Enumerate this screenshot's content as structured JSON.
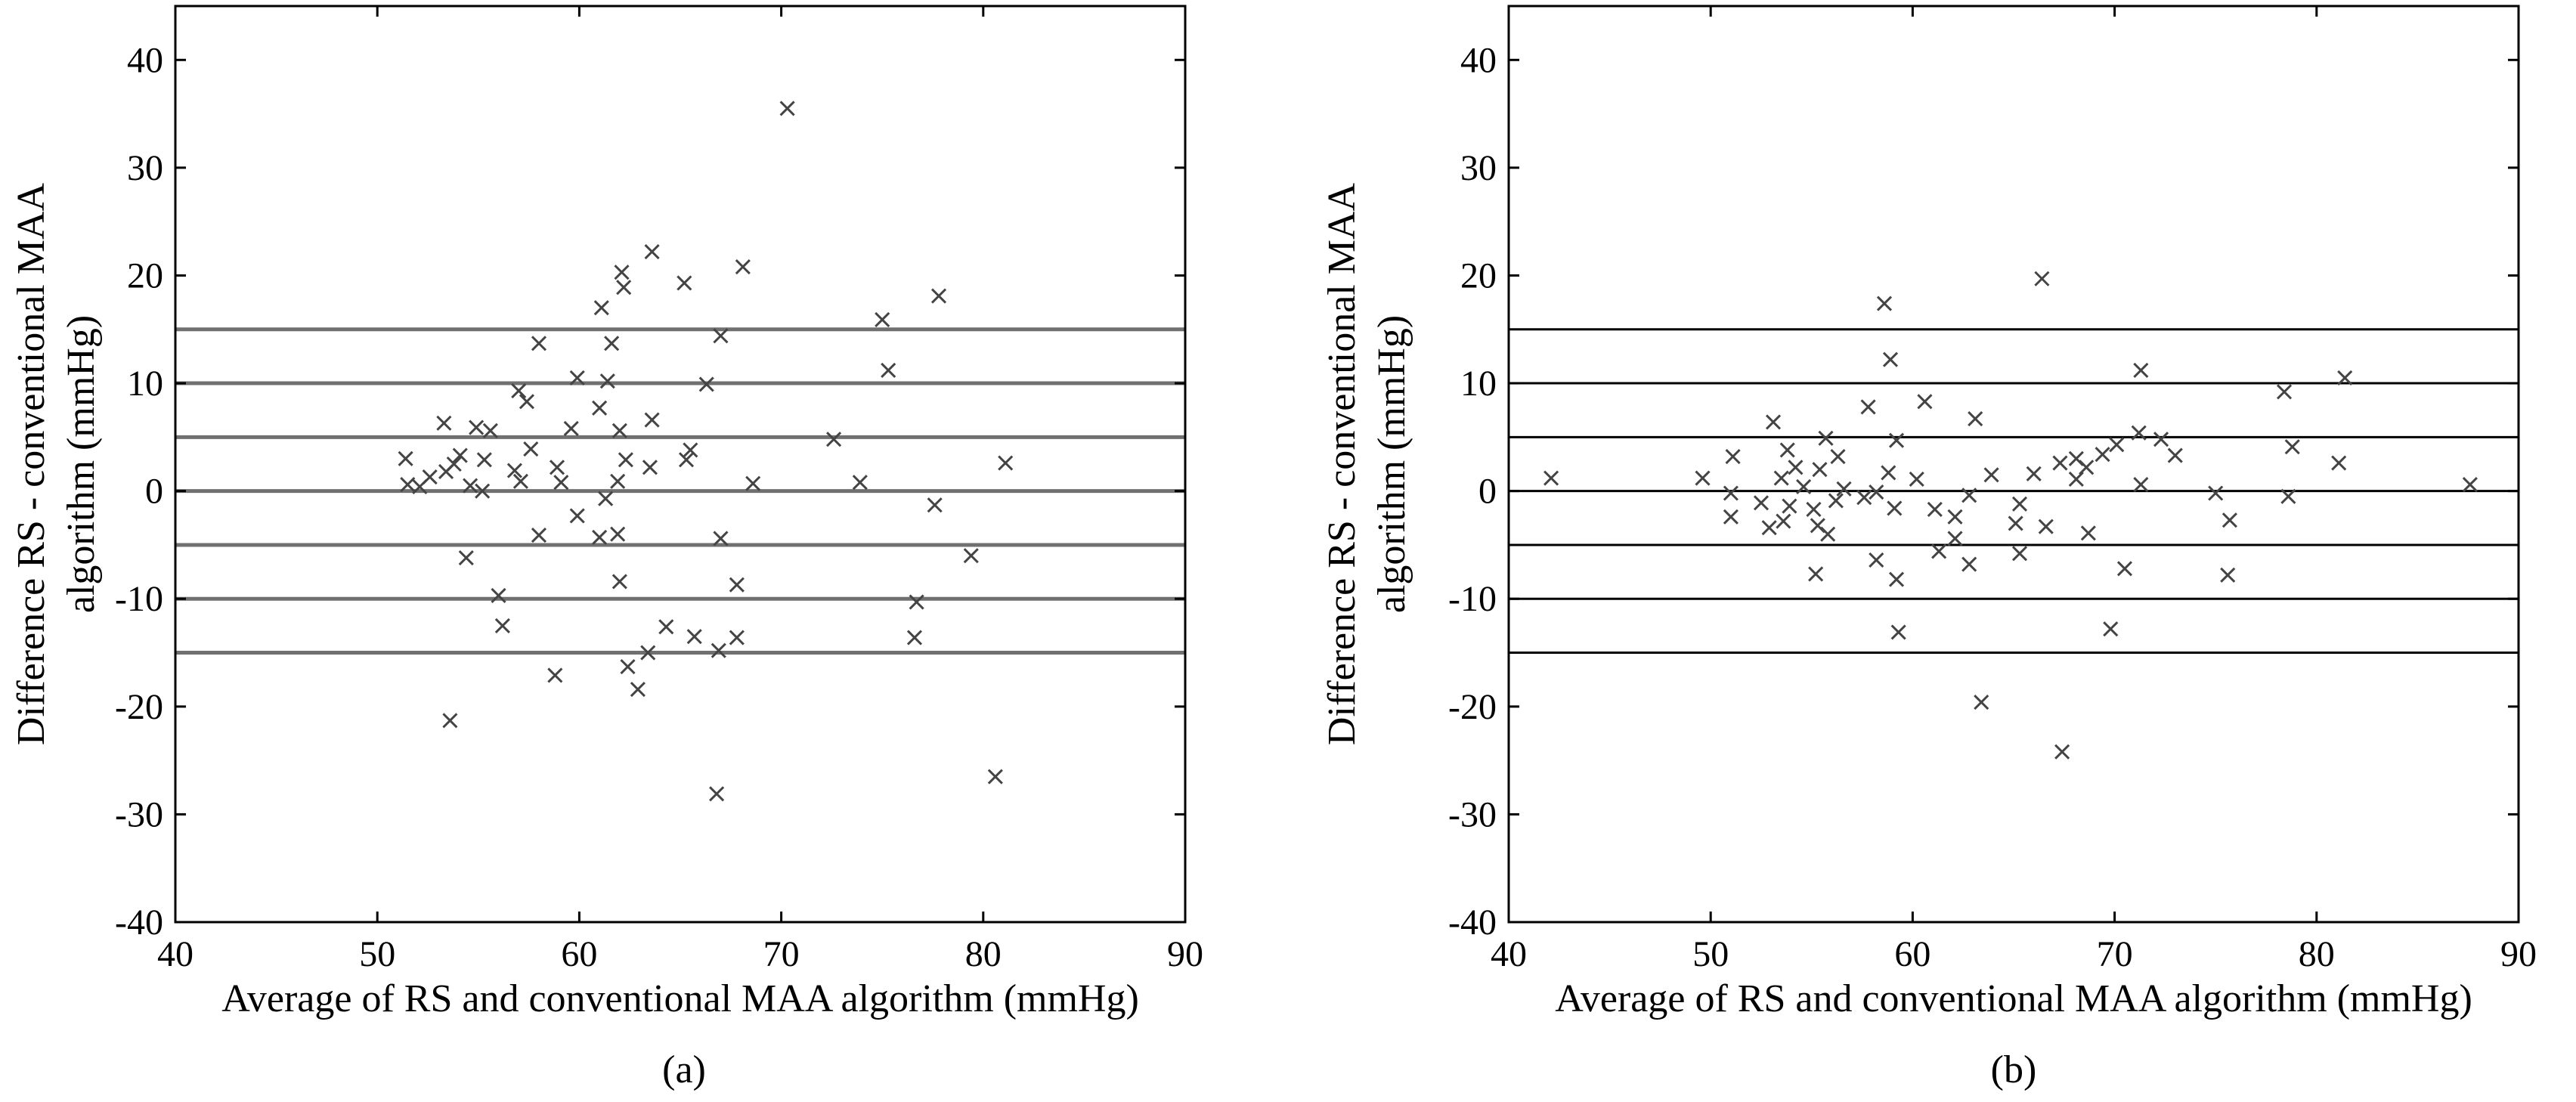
{
  "chart_data": [
    {
      "type": "scatter",
      "panel_label": "(a)",
      "title": "",
      "xlabel": "Average of RS and conventional MAA algorithm (mmHg)",
      "ylabel": "Difference RS - conventional MAA algorithm (mmHg)",
      "ylabel_lines": [
        "Difference RS - conventional MAA",
        "algorithm (mmHg)"
      ],
      "xlim": [
        40,
        90
      ],
      "ylim": [
        -40,
        45
      ],
      "xticks": [
        40,
        50,
        60,
        70,
        80,
        90
      ],
      "yticks": [
        -40,
        -30,
        -20,
        -10,
        0,
        10,
        20,
        30,
        40
      ],
      "grid": false,
      "marker": "x",
      "reference_lines": [
        -15,
        -10,
        -5,
        0,
        5,
        10,
        15
      ],
      "points": [
        [
          70.3,
          35.5
        ],
        [
          63.6,
          22.2
        ],
        [
          62.1,
          20.3
        ],
        [
          68.1,
          20.8
        ],
        [
          65.2,
          19.3
        ],
        [
          62.2,
          18.9
        ],
        [
          77.8,
          18.1
        ],
        [
          61.1,
          17.0
        ],
        [
          67.0,
          14.4
        ],
        [
          75.0,
          15.9
        ],
        [
          58.0,
          13.7
        ],
        [
          61.6,
          13.7
        ],
        [
          75.3,
          11.2
        ],
        [
          59.9,
          10.5
        ],
        [
          61.4,
          10.2
        ],
        [
          66.3,
          9.9
        ],
        [
          57.0,
          9.3
        ],
        [
          57.4,
          8.3
        ],
        [
          61.0,
          7.7
        ],
        [
          63.6,
          6.6
        ],
        [
          53.3,
          6.3
        ],
        [
          59.6,
          5.8
        ],
        [
          54.9,
          5.9
        ],
        [
          55.6,
          5.6
        ],
        [
          62.0,
          5.6
        ],
        [
          72.6,
          4.8
        ],
        [
          57.6,
          3.9
        ],
        [
          65.5,
          3.8
        ],
        [
          54.1,
          3.3
        ],
        [
          65.3,
          2.9
        ],
        [
          51.4,
          3.0
        ],
        [
          55.3,
          2.9
        ],
        [
          53.8,
          2.5
        ],
        [
          62.3,
          2.9
        ],
        [
          81.1,
          2.6
        ],
        [
          58.9,
          2.2
        ],
        [
          63.5,
          2.2
        ],
        [
          53.4,
          1.8
        ],
        [
          56.8,
          1.9
        ],
        [
          52.6,
          1.3
        ],
        [
          57.1,
          0.9
        ],
        [
          59.1,
          0.8
        ],
        [
          61.9,
          0.9
        ],
        [
          51.5,
          0.6
        ],
        [
          52.1,
          0.4
        ],
        [
          54.6,
          0.5
        ],
        [
          55.2,
          0.0
        ],
        [
          73.9,
          0.8
        ],
        [
          68.6,
          0.7
        ],
        [
          61.3,
          -0.7
        ],
        [
          77.6,
          -1.3
        ],
        [
          59.9,
          -2.3
        ],
        [
          61.9,
          -4.0
        ],
        [
          58.0,
          -4.1
        ],
        [
          61.0,
          -4.3
        ],
        [
          67.0,
          -4.4
        ],
        [
          79.4,
          -6.0
        ],
        [
          54.4,
          -6.2
        ],
        [
          62.0,
          -8.4
        ],
        [
          67.8,
          -8.7
        ],
        [
          56.0,
          -9.7
        ],
        [
          76.7,
          -10.3
        ],
        [
          56.2,
          -12.5
        ],
        [
          64.3,
          -12.6
        ],
        [
          65.7,
          -13.5
        ],
        [
          67.8,
          -13.6
        ],
        [
          76.6,
          -13.6
        ],
        [
          66.9,
          -14.8
        ],
        [
          63.4,
          -15.0
        ],
        [
          62.4,
          -16.3
        ],
        [
          58.8,
          -17.1
        ],
        [
          62.9,
          -18.4
        ],
        [
          53.6,
          -21.3
        ],
        [
          80.6,
          -26.5
        ],
        [
          66.8,
          -28.1
        ]
      ]
    },
    {
      "type": "scatter",
      "panel_label": "(b)",
      "title": "",
      "xlabel": "Average of RS and conventional MAA algorithm (mmHg)",
      "ylabel": "Difference RS - conventional MAA algorithm (mmHg)",
      "ylabel_lines": [
        "Difference RS - conventional MAA",
        "algorithm (mmHg)"
      ],
      "xlim": [
        40,
        90
      ],
      "ylim": [
        -40,
        45
      ],
      "xticks": [
        40,
        50,
        60,
        70,
        80,
        90
      ],
      "yticks": [
        -40,
        -30,
        -20,
        -10,
        0,
        10,
        20,
        30,
        40
      ],
      "grid": false,
      "marker": "x",
      "reference_lines": [
        -15,
        -10,
        -5,
        0,
        5,
        10,
        15
      ],
      "points": [
        [
          66.4,
          19.7
        ],
        [
          58.6,
          17.4
        ],
        [
          58.9,
          12.2
        ],
        [
          71.3,
          11.2
        ],
        [
          81.4,
          10.5
        ],
        [
          78.4,
          9.2
        ],
        [
          60.6,
          8.3
        ],
        [
          57.8,
          7.8
        ],
        [
          63.1,
          6.7
        ],
        [
          53.1,
          6.4
        ],
        [
          71.2,
          5.4
        ],
        [
          72.3,
          4.8
        ],
        [
          55.7,
          4.9
        ],
        [
          59.2,
          4.7
        ],
        [
          70.1,
          4.3
        ],
        [
          78.8,
          4.1
        ],
        [
          53.8,
          3.8
        ],
        [
          69.4,
          3.4
        ],
        [
          56.3,
          3.2
        ],
        [
          51.1,
          3.2
        ],
        [
          73.0,
          3.3
        ],
        [
          68.1,
          3.0
        ],
        [
          67.3,
          2.6
        ],
        [
          81.1,
          2.6
        ],
        [
          54.2,
          2.2
        ],
        [
          68.6,
          2.2
        ],
        [
          55.4,
          2.0
        ],
        [
          58.8,
          1.7
        ],
        [
          63.9,
          1.5
        ],
        [
          66.0,
          1.6
        ],
        [
          42.1,
          1.2
        ],
        [
          49.6,
          1.2
        ],
        [
          53.5,
          1.2
        ],
        [
          60.2,
          1.1
        ],
        [
          68.1,
          1.1
        ],
        [
          87.6,
          0.6
        ],
        [
          71.3,
          0.6
        ],
        [
          54.6,
          0.4
        ],
        [
          56.6,
          0.2
        ],
        [
          58.2,
          -0.1
        ],
        [
          51.0,
          -0.2
        ],
        [
          57.6,
          -0.6
        ],
        [
          75.0,
          -0.2
        ],
        [
          56.2,
          -0.9
        ],
        [
          78.6,
          -0.5
        ],
        [
          62.8,
          -0.4
        ],
        [
          53.9,
          -1.4
        ],
        [
          59.1,
          -1.6
        ],
        [
          52.5,
          -1.1
        ],
        [
          55.1,
          -1.7
        ],
        [
          61.1,
          -1.7
        ],
        [
          62.1,
          -2.4
        ],
        [
          65.3,
          -1.2
        ],
        [
          51.0,
          -2.4
        ],
        [
          53.6,
          -2.8
        ],
        [
          55.3,
          -3.2
        ],
        [
          65.1,
          -3.0
        ],
        [
          75.7,
          -2.7
        ],
        [
          66.6,
          -3.3
        ],
        [
          52.9,
          -3.4
        ],
        [
          55.8,
          -4.0
        ],
        [
          62.1,
          -4.4
        ],
        [
          68.7,
          -3.9
        ],
        [
          61.3,
          -5.6
        ],
        [
          65.3,
          -5.8
        ],
        [
          58.2,
          -6.4
        ],
        [
          62.8,
          -6.8
        ],
        [
          70.5,
          -7.2
        ],
        [
          55.2,
          -7.7
        ],
        [
          75.6,
          -7.8
        ],
        [
          59.2,
          -8.2
        ],
        [
          59.3,
          -13.1
        ],
        [
          69.8,
          -12.8
        ],
        [
          63.4,
          -19.6
        ],
        [
          67.4,
          -24.2
        ]
      ]
    }
  ]
}
